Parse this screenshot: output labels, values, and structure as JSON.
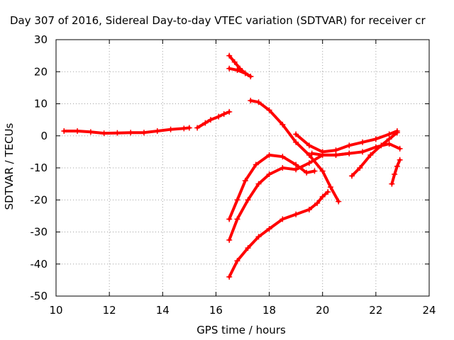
{
  "chart_data": {
    "type": "scatter",
    "title": "Day 307 of 2016, Sidereal Day-to-day VTEC variation (SDTVAR) for receiver cr",
    "xlabel": "GPS time / hours",
    "ylabel": "SDTVAR / TECUs",
    "xlim": [
      10,
      24
    ],
    "ylim": [
      -50,
      30
    ],
    "xticks": [
      10,
      12,
      14,
      16,
      18,
      20,
      22,
      24
    ],
    "yticks": [
      -50,
      -40,
      -30,
      -20,
      -10,
      0,
      10,
      20,
      30
    ],
    "grid": true,
    "marker": "plus",
    "color": "#ff0000",
    "series": [
      {
        "x": [
          10.3,
          10.8,
          11.3,
          11.8,
          12.3,
          12.8,
          13.3,
          13.8,
          14.3,
          14.8,
          15.0
        ],
        "y": [
          1.5,
          1.5,
          1.2,
          0.8,
          0.9,
          1.0,
          1.0,
          1.5,
          2.0,
          2.3,
          2.5
        ]
      },
      {
        "x": [
          15.3,
          15.6,
          15.8,
          16.1,
          16.3,
          16.5
        ],
        "y": [
          2.5,
          4.0,
          5.0,
          6.0,
          6.8,
          7.5
        ]
      },
      {
        "x": [
          16.5,
          16.7,
          16.9,
          17.1,
          17.3
        ],
        "y": [
          25.0,
          23.0,
          21.0,
          19.5,
          18.5
        ]
      },
      {
        "x": [
          16.5,
          16.8,
          17.1,
          17.3
        ],
        "y": [
          21.0,
          20.5,
          19.5,
          18.5
        ]
      },
      {
        "x": [
          17.3,
          17.6,
          18.0,
          18.5,
          19.0,
          19.5,
          20.0,
          20.3,
          20.6
        ],
        "y": [
          11.0,
          10.5,
          8.0,
          3.5,
          -2.0,
          -6.0,
          -11.0,
          -16.0,
          -20.5
        ]
      },
      {
        "x": [
          16.5,
          16.8,
          17.1,
          17.5,
          18.0,
          18.5,
          19.0,
          19.4,
          19.7
        ],
        "y": [
          -26.0,
          -20.0,
          -14.0,
          -9.0,
          -6.0,
          -6.5,
          -9.0,
          -11.5,
          -11.0
        ]
      },
      {
        "x": [
          16.5,
          16.8,
          17.2,
          17.6,
          18.0,
          18.5,
          19.0,
          19.5,
          20.0,
          20.5,
          21.0
        ],
        "y": [
          -32.5,
          -26.0,
          -20.0,
          -15.0,
          -12.0,
          -10.0,
          -10.5,
          -8.5,
          -6.0,
          -6.0,
          -5.5
        ]
      },
      {
        "x": [
          16.5,
          16.8,
          17.2,
          17.6,
          18.0,
          18.5,
          19.0,
          19.5,
          19.8,
          20.0,
          20.2
        ],
        "y": [
          -44.0,
          -39.0,
          -35.0,
          -31.5,
          -29.0,
          -26.0,
          -24.5,
          -23.0,
          -21.0,
          -19.0,
          -17.5
        ]
      },
      {
        "x": [
          19.0,
          19.5,
          20.0,
          20.5,
          21.0,
          21.5,
          22.0,
          22.5,
          22.8
        ],
        "y": [
          0.5,
          -3.0,
          -5.0,
          -4.5,
          -3.0,
          -2.0,
          -1.0,
          0.5,
          1.5
        ]
      },
      {
        "x": [
          19.6,
          20.0,
          20.5,
          21.0,
          21.5,
          22.0,
          22.5,
          22.9
        ],
        "y": [
          -5.5,
          -6.0,
          -6.0,
          -5.5,
          -5.0,
          -3.5,
          -2.5,
          -4.0
        ]
      },
      {
        "x": [
          21.1,
          21.4,
          21.8,
          22.2,
          22.5,
          22.8
        ],
        "y": [
          -12.5,
          -10.0,
          -6.0,
          -3.0,
          -1.0,
          1.0
        ]
      },
      {
        "x": [
          22.6,
          22.7,
          22.8,
          22.9
        ],
        "y": [
          -15.0,
          -12.0,
          -9.5,
          -7.5
        ]
      }
    ]
  }
}
